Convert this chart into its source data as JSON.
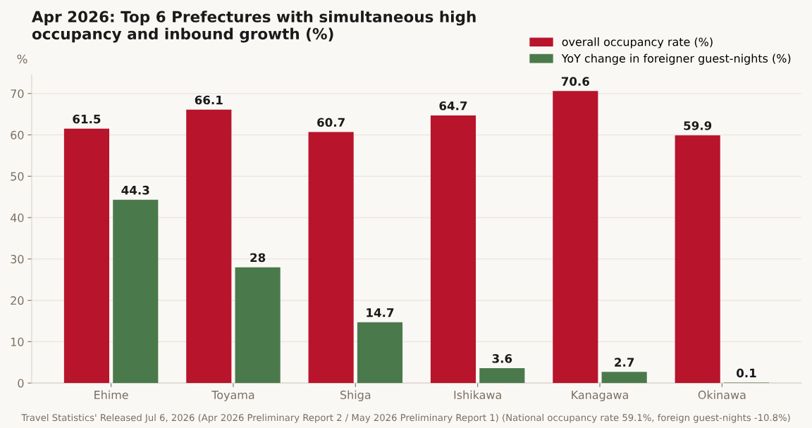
{
  "chart_data": {
    "type": "bar",
    "title": "Apr 2026: Top 6 Prefectures with simultaneous high\noccupancy and inbound growth (%)",
    "ylabel": "%",
    "categories": [
      "Ehime",
      "Toyama",
      "Shiga",
      "Ishikawa",
      "Kanagawa",
      "Okinawa"
    ],
    "series": [
      {
        "name": "overall occupancy rate (%)",
        "color": "#b8142b",
        "values": [
          61.5,
          66.1,
          60.7,
          64.7,
          70.6,
          59.9
        ]
      },
      {
        "name": "YoY change in foreigner guest-nights (%)",
        "color": "#4a7a4b",
        "values": [
          44.3,
          28,
          14.7,
          3.6,
          2.7,
          0.1
        ]
      }
    ],
    "ylim": [
      0,
      74.5
    ],
    "yticks": [
      0,
      10,
      20,
      30,
      40,
      50,
      60,
      70
    ],
    "grid": "y",
    "legend": "top right",
    "data_labels": true,
    "annotations": [
      "Travel Statistics' Released Jul 6, 2026 (Apr 2026 Preliminary Report 2 / May 2026 Preliminary Report 1) (National occupancy rate 59.1%, foreign guest-nights -10.8%)"
    ]
  }
}
